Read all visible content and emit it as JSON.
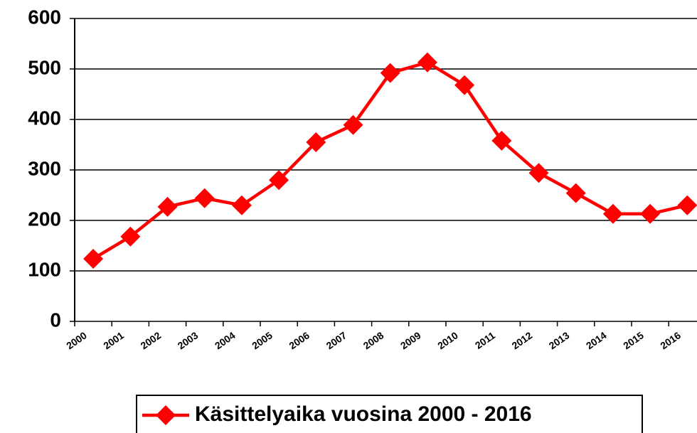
{
  "chart_data": {
    "type": "line",
    "categories": [
      "2000",
      "2001",
      "2002",
      "2003",
      "2004",
      "2005",
      "2006",
      "2007",
      "2008",
      "2009",
      "2010",
      "2011",
      "2012",
      "2013",
      "2014",
      "2015",
      "2016"
    ],
    "series": [
      {
        "name": "Käsittelyaika vuosina 2000 - 2016",
        "color": "#ff0000",
        "values": [
          124,
          168,
          227,
          244,
          230,
          280,
          355,
          389,
          492,
          513,
          468,
          358,
          294,
          254,
          213,
          213,
          230
        ]
      }
    ],
    "ylim": [
      0,
      600
    ],
    "yticks": [
      0,
      100,
      200,
      300,
      400,
      500,
      600
    ],
    "grid": true,
    "legend": "bottom"
  }
}
